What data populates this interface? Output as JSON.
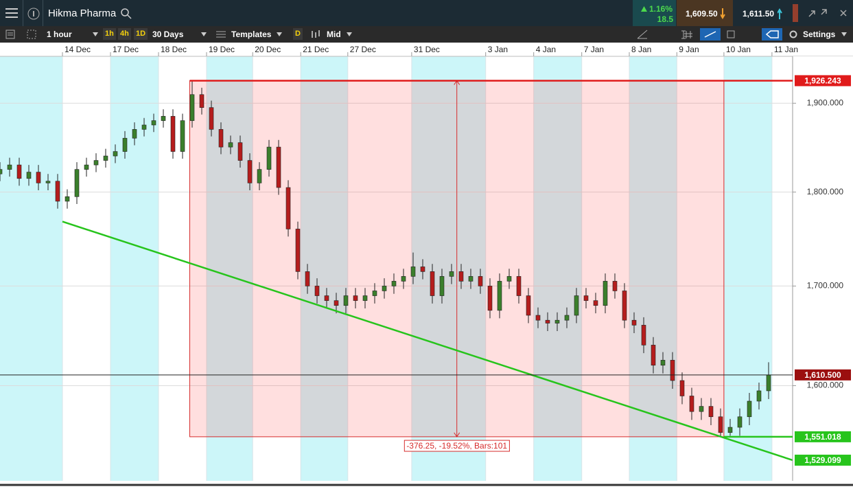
{
  "header": {
    "instrument": "Hikma Pharma",
    "change_pct": "1.16%",
    "change_pts": "18.5",
    "sell": "1,609.50",
    "buy": "1,611.50"
  },
  "toolbar": {
    "interval": "1 hour",
    "quick_intervals": [
      "1h",
      "4h",
      "1D"
    ],
    "range": "30 Days",
    "templates": "Templates",
    "draw": "D",
    "price_type": "Mid",
    "settings": "Settings"
  },
  "chart_data": {
    "type": "candlestick",
    "x": [
      0,
      2,
      4,
      6,
      8,
      10,
      12,
      14,
      16,
      18,
      20,
      22,
      24,
      26,
      28,
      30,
      32,
      34,
      36,
      38,
      40,
      42,
      44,
      46,
      48,
      50,
      52,
      54,
      56,
      58,
      60,
      62,
      64,
      66,
      68,
      70,
      72,
      74,
      76,
      78,
      80,
      82,
      84,
      86,
      88,
      90,
      92,
      94,
      96,
      98,
      100,
      102,
      104,
      106,
      108,
      110,
      112,
      114,
      116,
      118,
      120,
      122,
      124,
      126,
      128,
      130,
      132,
      134,
      136,
      138,
      140,
      142,
      144,
      146,
      148,
      150,
      152,
      154,
      156,
      158,
      160
    ],
    "series": [
      {
        "up_color": "#3b7f2c",
        "down_color": "#b51d1d",
        "open": [
          1820,
          1825,
          1830,
          1815,
          1822,
          1810,
          1812,
          1790,
          1795,
          1825,
          1830,
          1835,
          1840,
          1845,
          1860,
          1870,
          1875,
          1880,
          1885,
          1845,
          1880,
          1910,
          1895,
          1870,
          1850,
          1855,
          1835,
          1810,
          1825,
          1850,
          1805,
          1760,
          1715,
          1700,
          1690,
          1685,
          1680,
          1690,
          1685,
          1690,
          1695,
          1700,
          1705,
          1710,
          1720,
          1715,
          1690,
          1710,
          1715,
          1705,
          1710,
          1700,
          1675,
          1705,
          1710,
          1690,
          1670,
          1665,
          1662,
          1665,
          1670,
          1690,
          1685,
          1680,
          1705,
          1695,
          1665,
          1660,
          1640,
          1620,
          1625,
          1605,
          1590,
          1575,
          1580,
          1570,
          1555,
          1560,
          1570,
          1585,
          1595
        ],
        "high": [
          1833,
          1838,
          1838,
          1830,
          1830,
          1820,
          1820,
          1803,
          1833,
          1838,
          1843,
          1848,
          1853,
          1868,
          1878,
          1883,
          1888,
          1893,
          1893,
          1888,
          1926,
          1918,
          1903,
          1878,
          1863,
          1863,
          1843,
          1833,
          1858,
          1858,
          1813,
          1768,
          1723,
          1708,
          1698,
          1693,
          1698,
          1698,
          1698,
          1703,
          1708,
          1713,
          1718,
          1735,
          1728,
          1723,
          1718,
          1723,
          1723,
          1718,
          1718,
          1708,
          1713,
          1718,
          1718,
          1698,
          1678,
          1673,
          1673,
          1678,
          1698,
          1698,
          1693,
          1713,
          1713,
          1703,
          1673,
          1668,
          1648,
          1633,
          1633,
          1613,
          1598,
          1588,
          1588,
          1578,
          1568,
          1578,
          1593,
          1603,
          1623
        ],
        "low": [
          1812,
          1817,
          1807,
          1807,
          1802,
          1802,
          1782,
          1782,
          1787,
          1817,
          1822,
          1827,
          1832,
          1837,
          1852,
          1862,
          1867,
          1872,
          1837,
          1837,
          1872,
          1887,
          1862,
          1842,
          1842,
          1827,
          1802,
          1802,
          1817,
          1797,
          1752,
          1707,
          1692,
          1682,
          1677,
          1672,
          1672,
          1677,
          1677,
          1682,
          1687,
          1692,
          1697,
          1702,
          1707,
          1682,
          1682,
          1702,
          1697,
          1697,
          1692,
          1667,
          1667,
          1697,
          1682,
          1662,
          1657,
          1654,
          1654,
          1657,
          1662,
          1677,
          1672,
          1672,
          1687,
          1657,
          1652,
          1632,
          1612,
          1612,
          1597,
          1582,
          1567,
          1567,
          1562,
          1551,
          1552,
          1552,
          1562,
          1577,
          1587
        ],
        "close": [
          1825,
          1830,
          1815,
          1822,
          1810,
          1812,
          1790,
          1795,
          1825,
          1830,
          1835,
          1840,
          1845,
          1860,
          1870,
          1875,
          1880,
          1885,
          1845,
          1880,
          1910,
          1895,
          1870,
          1850,
          1855,
          1835,
          1810,
          1825,
          1850,
          1805,
          1760,
          1715,
          1700,
          1690,
          1685,
          1680,
          1690,
          1685,
          1690,
          1695,
          1700,
          1705,
          1710,
          1720,
          1715,
          1690,
          1710,
          1715,
          1705,
          1710,
          1700,
          1675,
          1705,
          1710,
          1690,
          1670,
          1665,
          1662,
          1665,
          1670,
          1690,
          1685,
          1680,
          1705,
          1695,
          1665,
          1660,
          1640,
          1620,
          1625,
          1605,
          1590,
          1575,
          1580,
          1570,
          1555,
          1560,
          1570,
          1585,
          1595,
          1610.5
        ]
      }
    ],
    "xlim": [
      0,
      165
    ],
    "xticks": [
      {
        "value": 13,
        "label": "14 Dec"
      },
      {
        "value": 23,
        "label": "17 Dec"
      },
      {
        "value": 33,
        "label": "18 Dec"
      },
      {
        "value": 43,
        "label": "19 Dec"
      },
      {
        "value": 52.6,
        "label": "20 Dec"
      },
      {
        "value": 62.6,
        "label": "21 Dec"
      },
      {
        "value": 72.4,
        "label": "27 Dec"
      },
      {
        "value": 85.7,
        "label": "31 Dec"
      },
      {
        "value": 101.1,
        "label": "3 Jan"
      },
      {
        "value": 111.1,
        "label": "4 Jan"
      },
      {
        "value": 121.1,
        "label": "7 Jan"
      },
      {
        "value": 131,
        "label": "8 Jan"
      },
      {
        "value": 140.9,
        "label": "9 Jan"
      },
      {
        "value": 150.7,
        "label": "10 Jan"
      },
      {
        "value": 160.7,
        "label": "11 Jan"
      }
    ],
    "ylim": [
      1510,
      1955
    ],
    "yticks": [
      {
        "value": 1600,
        "label": "1,600.000"
      },
      {
        "value": 1700,
        "label": "1,700.000"
      },
      {
        "value": 1800,
        "label": "1,800.000"
      },
      {
        "value": 1900,
        "label": "1,900.000"
      }
    ],
    "log_scale": true,
    "grid": true,
    "session_colors": [
      "#ccf6f9",
      "#ffffff"
    ],
    "levels": [
      {
        "value": 1926.243,
        "label": "1,926.243",
        "color": "#e01b1b",
        "from": 39.5
      },
      {
        "value": 1551.018,
        "label": "1,551.018",
        "color": "#27c41c",
        "from": 150.7
      },
      {
        "value": 1610.5,
        "label": "1,610.500",
        "color": "#9b0f0f",
        "from": 0
      }
    ],
    "trendline": {
      "x": [
        13,
        165
      ],
      "values": [
        1768,
        1529.099
      ],
      "color": "#27c41c",
      "end_label": "1,529.099"
    },
    "measure": {
      "x": [
        39.5,
        150.7
      ],
      "label": "-376.25, -19.52%, Bars:101"
    }
  }
}
